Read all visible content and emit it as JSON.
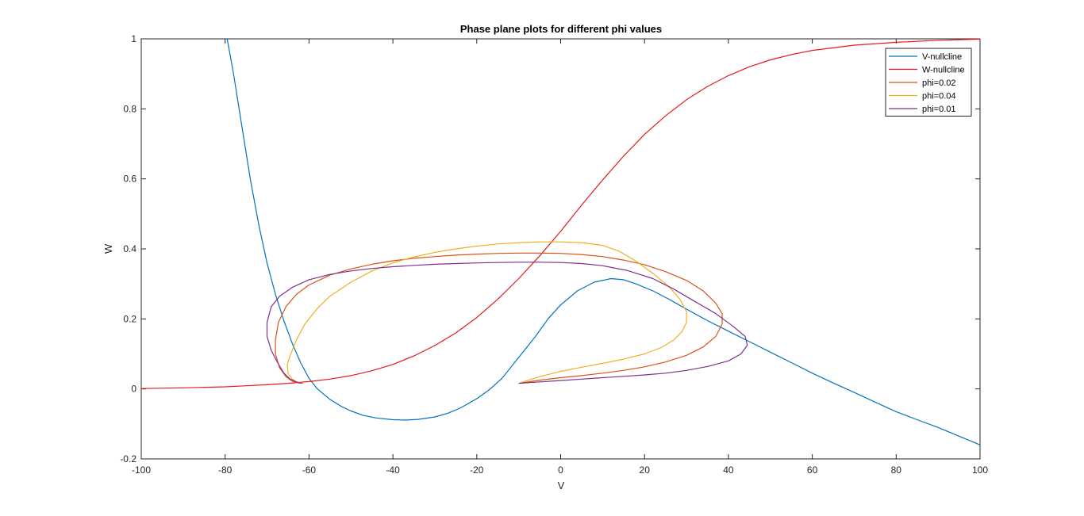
{
  "chart_data": {
    "type": "line",
    "title": "Phase plane plots for different phi values",
    "xlabel": "V",
    "ylabel": "W",
    "xlim": [
      -100,
      100
    ],
    "ylim": [
      -0.2,
      1
    ],
    "xticks": [
      -100,
      -80,
      -60,
      -40,
      -20,
      0,
      20,
      40,
      60,
      80,
      100
    ],
    "yticks": [
      -0.2,
      0,
      0.2,
      0.4,
      0.6,
      0.8,
      1
    ],
    "grid": false,
    "legend_position": "top-right",
    "series": [
      {
        "name": "V-nullcline",
        "color": "#0072BD",
        "x": [
          -79.5,
          -78,
          -76,
          -74,
          -72,
          -70,
          -68,
          -66,
          -64,
          -62,
          -60,
          -58,
          -55,
          -52,
          -50,
          -47,
          -44,
          -40,
          -37,
          -34,
          -30,
          -27,
          -24,
          -20,
          -17,
          -14,
          -10,
          -6,
          -3,
          0,
          4,
          8,
          12,
          15,
          18,
          22,
          26,
          30,
          35,
          40,
          45,
          50,
          55,
          60,
          65,
          70,
          75,
          80,
          85,
          90,
          95,
          100
        ],
        "y": [
          1.0,
          0.9,
          0.75,
          0.6,
          0.47,
          0.36,
          0.27,
          0.195,
          0.13,
          0.075,
          0.03,
          0.0,
          -0.03,
          -0.052,
          -0.063,
          -0.076,
          -0.083,
          -0.088,
          -0.089,
          -0.087,
          -0.08,
          -0.07,
          -0.055,
          -0.028,
          -0.002,
          0.03,
          0.09,
          0.15,
          0.2,
          0.24,
          0.28,
          0.305,
          0.315,
          0.312,
          0.3,
          0.28,
          0.255,
          0.228,
          0.195,
          0.165,
          0.135,
          0.105,
          0.075,
          0.045,
          0.017,
          -0.01,
          -0.038,
          -0.065,
          -0.088,
          -0.11,
          -0.135,
          -0.16
        ]
      },
      {
        "name": "W-nullcline",
        "color": "#E41A1C",
        "x": [
          -100,
          -90,
          -80,
          -75,
          -70,
          -65,
          -60,
          -55,
          -50,
          -45,
          -40,
          -35,
          -30,
          -25,
          -20,
          -15,
          -10,
          -5,
          0,
          5,
          10,
          15,
          20,
          25,
          30,
          35,
          40,
          45,
          50,
          55,
          60,
          70,
          80,
          90,
          100
        ],
        "y": [
          0.001,
          0.003,
          0.006,
          0.009,
          0.012,
          0.016,
          0.021,
          0.028,
          0.038,
          0.052,
          0.07,
          0.094,
          0.124,
          0.16,
          0.204,
          0.256,
          0.315,
          0.38,
          0.45,
          0.525,
          0.597,
          0.665,
          0.727,
          0.78,
          0.826,
          0.864,
          0.895,
          0.92,
          0.94,
          0.955,
          0.967,
          0.982,
          0.99,
          0.996,
          0.999
        ]
      },
      {
        "name": "phi=0.02",
        "color": "#D95319",
        "x": [
          -10,
          -5,
          0,
          5,
          10,
          15,
          20,
          25,
          30,
          34,
          37,
          38.5,
          38.5,
          37,
          34,
          30,
          25,
          20,
          15,
          10,
          5,
          0,
          -5,
          -10,
          -15,
          -20,
          -25,
          -30,
          -35,
          -40,
          -45,
          -50,
          -55,
          -60,
          -63,
          -65.5,
          -67.3,
          -68,
          -68,
          -67,
          -65.5,
          -64,
          -62.5,
          -61.5
        ],
        "y": [
          0.016,
          0.025,
          0.032,
          0.038,
          0.045,
          0.053,
          0.063,
          0.077,
          0.096,
          0.12,
          0.15,
          0.185,
          0.215,
          0.245,
          0.28,
          0.31,
          0.335,
          0.355,
          0.368,
          0.378,
          0.384,
          0.387,
          0.388,
          0.388,
          0.387,
          0.385,
          0.382,
          0.378,
          0.373,
          0.366,
          0.356,
          0.343,
          0.325,
          0.297,
          0.27,
          0.235,
          0.19,
          0.14,
          0.1,
          0.06,
          0.035,
          0.022,
          0.017,
          0.016
        ]
      },
      {
        "name": "phi=0.04",
        "color": "#EDB120",
        "x": [
          -10,
          -5,
          0,
          5,
          10,
          15,
          20,
          24,
          27,
          29,
          30,
          30,
          28.5,
          26,
          22,
          18,
          14,
          10,
          5,
          0,
          -5,
          -10,
          -15,
          -20,
          -25,
          -30,
          -35,
          -40,
          -45,
          -50,
          -55,
          -58,
          -61,
          -63,
          -64.5,
          -65.2,
          -65,
          -64,
          -63,
          -62
        ],
        "y": [
          0.016,
          0.035,
          0.05,
          0.062,
          0.073,
          0.085,
          0.1,
          0.118,
          0.14,
          0.165,
          0.19,
          0.22,
          0.255,
          0.29,
          0.33,
          0.365,
          0.393,
          0.41,
          0.418,
          0.42,
          0.42,
          0.418,
          0.414,
          0.408,
          0.4,
          0.39,
          0.377,
          0.36,
          0.337,
          0.305,
          0.265,
          0.23,
          0.185,
          0.14,
          0.095,
          0.07,
          0.045,
          0.028,
          0.02,
          0.017
        ]
      },
      {
        "name": "phi=0.01",
        "color": "#7E2F8E",
        "x": [
          -10,
          -5,
          0,
          5,
          10,
          15,
          20,
          25,
          30,
          35,
          40,
          43,
          44.5,
          44,
          41,
          37,
          32,
          27,
          22,
          16,
          10,
          5,
          0,
          -5,
          -10,
          -15,
          -20,
          -25,
          -30,
          -35,
          -40,
          -45,
          -50,
          -55,
          -60,
          -64,
          -67,
          -69,
          -70,
          -70,
          -69,
          -67.5,
          -66,
          -64.5,
          -63,
          -62
        ],
        "y": [
          0.016,
          0.02,
          0.024,
          0.028,
          0.032,
          0.036,
          0.04,
          0.045,
          0.053,
          0.064,
          0.08,
          0.1,
          0.125,
          0.15,
          0.18,
          0.215,
          0.25,
          0.285,
          0.315,
          0.338,
          0.352,
          0.358,
          0.361,
          0.362,
          0.362,
          0.361,
          0.36,
          0.358,
          0.356,
          0.353,
          0.349,
          0.344,
          0.337,
          0.327,
          0.312,
          0.29,
          0.265,
          0.235,
          0.19,
          0.15,
          0.11,
          0.075,
          0.045,
          0.028,
          0.02,
          0.016
        ]
      }
    ]
  }
}
